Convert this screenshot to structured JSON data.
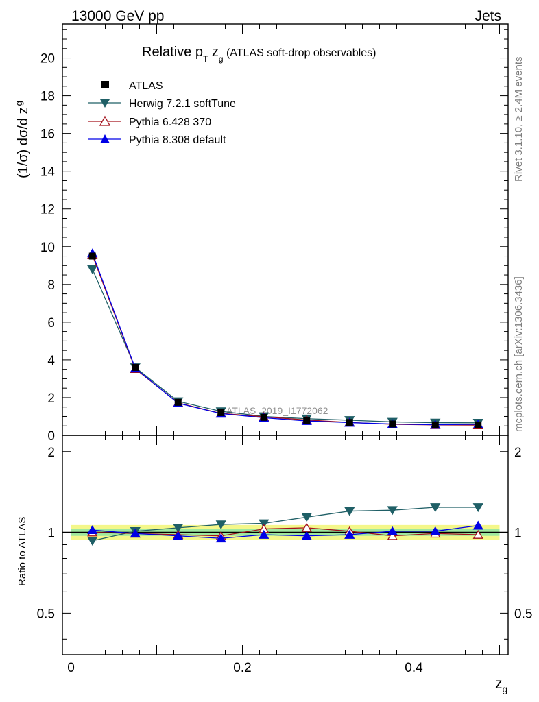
{
  "header": {
    "left": "13000 GeV pp",
    "right": "Jets"
  },
  "side_labels": {
    "rivet": "Rivet 3.1.10, ≥ 2.4M events",
    "mcplots": "mcplots.cern.ch [arXiv:1306.3436]"
  },
  "chart_data": {
    "type": "line",
    "title_parts": {
      "pre": "Relative p",
      "sub1": "T",
      "mid": " z",
      "sub2": "g",
      "post": " (ATLAS soft-drop observables)"
    },
    "ylabel_parts": {
      "main": "(1/σ) dσ/d z",
      "sub": "g"
    },
    "ylabel_ratio": "Ratio to ATLAS",
    "xlabel_parts": {
      "main": "z",
      "sub": "g"
    },
    "watermark": "ATLAS_2019_I1772062",
    "x": [
      0.025,
      0.075,
      0.125,
      0.175,
      0.225,
      0.275,
      0.325,
      0.375,
      0.425,
      0.475
    ],
    "xlim": [
      -0.01,
      0.51
    ],
    "ylim": [
      0,
      21.8
    ],
    "ratio_ylim": [
      0.35,
      2.3
    ],
    "x_ticks": [
      "0",
      "0.2",
      "0.4"
    ],
    "x_tick_values": [
      0,
      0.2,
      0.4
    ],
    "y_ticks": [
      "0",
      "2",
      "4",
      "6",
      "8",
      "10",
      "12",
      "14",
      "16",
      "18",
      "20"
    ],
    "y_tick_values": [
      0,
      2,
      4,
      6,
      8,
      10,
      12,
      14,
      16,
      18,
      20
    ],
    "ratio_ticks": [
      "0.5",
      "1",
      "2"
    ],
    "ratio_tick_values": [
      0.5,
      1,
      2
    ],
    "data": {
      "name": "ATLAS",
      "color": "#000000",
      "values": [
        9.5,
        3.6,
        1.75,
        1.2,
        0.95,
        0.78,
        0.68,
        0.6,
        0.55,
        0.55
      ]
    },
    "series": [
      {
        "name": "Herwig 7.2.1 softTune",
        "color": "#1f5f66",
        "marker": "triangle-down",
        "values": [
          8.8,
          3.6,
          1.8,
          1.27,
          1.0,
          0.88,
          0.8,
          0.71,
          0.67,
          0.66
        ],
        "ratio": [
          0.93,
          1.01,
          1.04,
          1.07,
          1.08,
          1.14,
          1.2,
          1.21,
          1.24,
          1.24
        ]
      },
      {
        "name": "Pythia 6.428 370",
        "color": "#a3101b",
        "marker": "triangle-up-open",
        "values": [
          9.55,
          3.52,
          1.72,
          1.16,
          0.98,
          0.81,
          0.68,
          0.58,
          0.55,
          0.54
        ],
        "ratio": [
          1.0,
          0.99,
          0.98,
          0.97,
          1.03,
          1.04,
          1.01,
          0.97,
          0.99,
          0.98
        ]
      },
      {
        "name": "Pythia 8.308 default",
        "color": "#0000e6",
        "marker": "triangle-up",
        "values": [
          9.65,
          3.55,
          1.7,
          1.15,
          0.93,
          0.76,
          0.67,
          0.6,
          0.56,
          0.58
        ],
        "ratio": [
          1.02,
          0.99,
          0.97,
          0.95,
          0.98,
          0.97,
          0.98,
          1.01,
          1.01,
          1.06
        ]
      }
    ],
    "ratio_band": {
      "inner": 0.03,
      "outer": 0.065
    }
  }
}
